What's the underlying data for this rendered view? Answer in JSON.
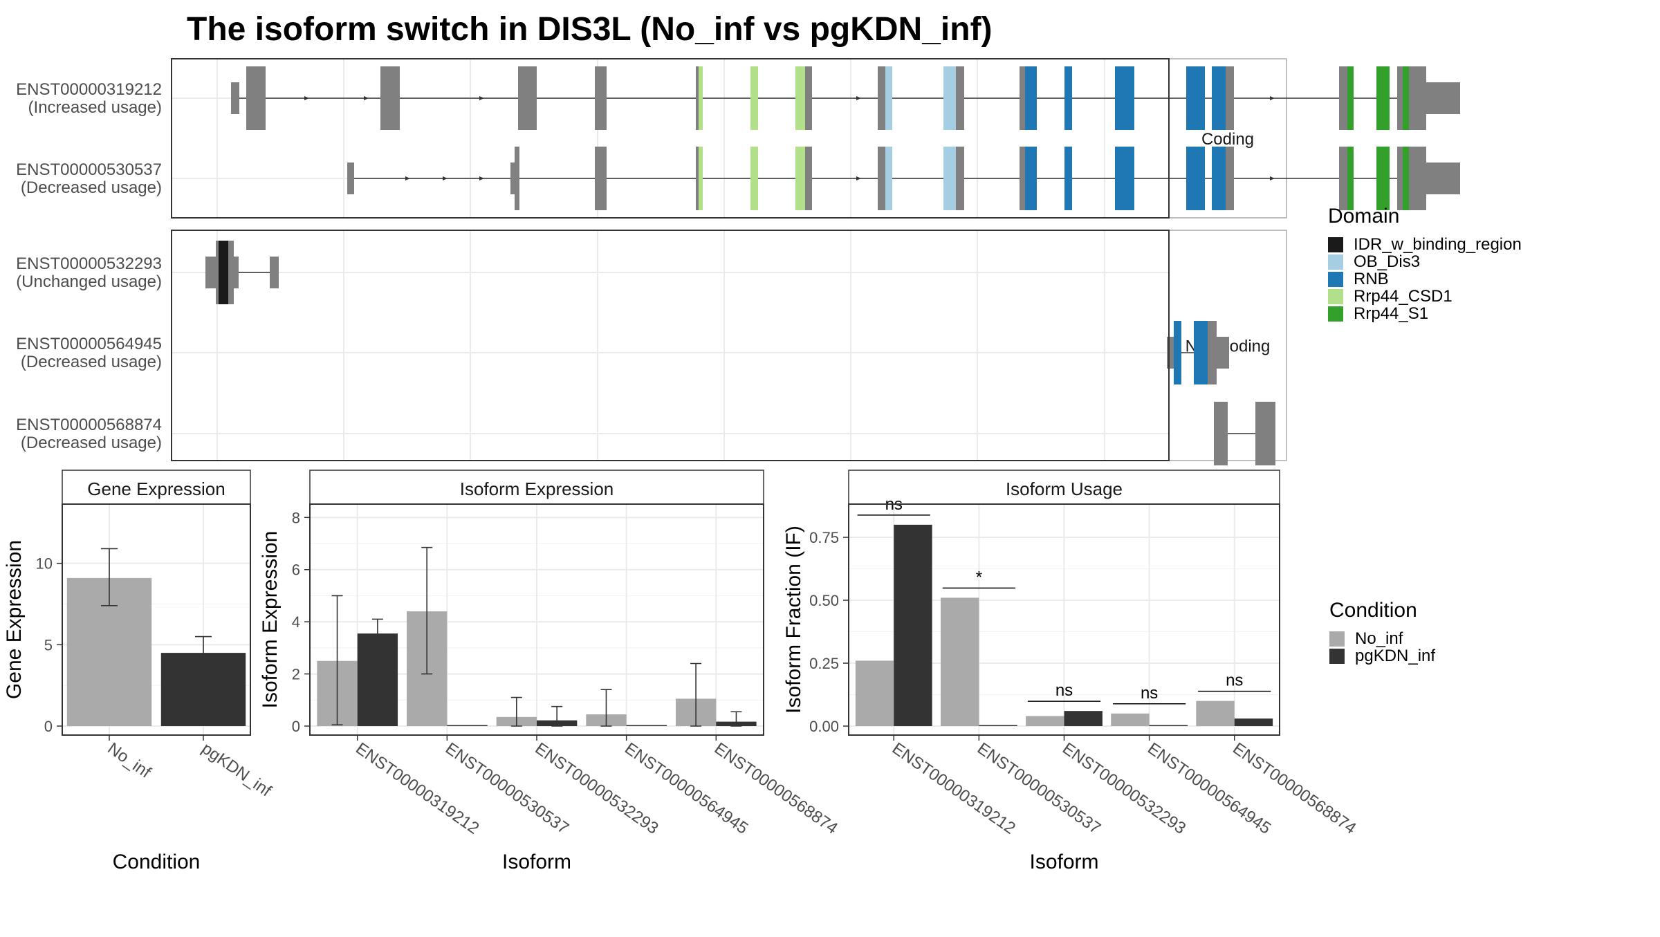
{
  "title": "The isoform switch in DIS3L (No_inf vs pgKDN_inf)",
  "structure": {
    "facets": [
      "Coding",
      "Non-coding"
    ],
    "isoforms": [
      {
        "id": "ENST00000319212",
        "usage": "(Increased usage)",
        "facet": "Coding",
        "exons": [
          [
            20,
            32,
            "utr"
          ],
          [
            42,
            70,
            "gray"
          ],
          [
            236,
            264,
            "gray"
          ],
          [
            435,
            462,
            "gray"
          ],
          [
            546,
            563,
            "gray"
          ],
          [
            692,
            696,
            "gray"
          ],
          [
            696,
            702,
            "Rrp44_CSD1"
          ],
          [
            771,
            782,
            "Rrp44_CSD1"
          ],
          [
            836,
            850,
            "Rrp44_CSD1"
          ],
          [
            850,
            860,
            "gray"
          ],
          [
            955,
            966,
            "gray"
          ],
          [
            966,
            976,
            "OB_Dis3"
          ],
          [
            1050,
            1068,
            "OB_Dis3"
          ],
          [
            1068,
            1080,
            "gray"
          ],
          [
            1160,
            1168,
            "gray"
          ],
          [
            1168,
            1185,
            "RNB"
          ],
          [
            1225,
            1236,
            "RNB"
          ],
          [
            1298,
            1326,
            "RNB"
          ],
          [
            1401,
            1428,
            "RNB"
          ],
          [
            1438,
            1458,
            "RNB"
          ],
          [
            1458,
            1470,
            "gray"
          ],
          [
            1622,
            1634,
            "gray"
          ],
          [
            1634,
            1643,
            "Rrp44_S1"
          ],
          [
            1676,
            1695,
            "Rrp44_S1"
          ],
          [
            1706,
            1714,
            "gray"
          ],
          [
            1714,
            1723,
            "Rrp44_S1"
          ],
          [
            1723,
            1728,
            "gray"
          ],
          [
            1728,
            1748,
            "gray"
          ],
          [
            1748,
            1797,
            "utr"
          ]
        ],
        "arrows": [
          130,
          216,
          383,
          928,
          1526
        ]
      },
      {
        "id": "ENST00000530537",
        "usage": "(Decreased usage)",
        "facet": "Coding",
        "exons": [
          [
            188,
            198,
            "utr"
          ],
          [
            424,
            430,
            "utr"
          ],
          [
            430,
            437,
            "gray"
          ],
          [
            546,
            563,
            "gray"
          ],
          [
            692,
            696,
            "gray"
          ],
          [
            696,
            702,
            "Rrp44_CSD1"
          ],
          [
            771,
            782,
            "Rrp44_CSD1"
          ],
          [
            836,
            850,
            "Rrp44_CSD1"
          ],
          [
            850,
            860,
            "gray"
          ],
          [
            955,
            966,
            "gray"
          ],
          [
            966,
            976,
            "OB_Dis3"
          ],
          [
            1050,
            1068,
            "OB_Dis3"
          ],
          [
            1068,
            1080,
            "gray"
          ],
          [
            1160,
            1168,
            "gray"
          ],
          [
            1168,
            1185,
            "RNB"
          ],
          [
            1225,
            1236,
            "RNB"
          ],
          [
            1298,
            1326,
            "RNB"
          ],
          [
            1401,
            1428,
            "RNB"
          ],
          [
            1438,
            1458,
            "RNB"
          ],
          [
            1458,
            1470,
            "gray"
          ],
          [
            1622,
            1634,
            "gray"
          ],
          [
            1634,
            1643,
            "Rrp44_S1"
          ],
          [
            1676,
            1695,
            "Rrp44_S1"
          ],
          [
            1706,
            1714,
            "gray"
          ],
          [
            1714,
            1723,
            "Rrp44_S1"
          ],
          [
            1723,
            1728,
            "gray"
          ],
          [
            1728,
            1748,
            "gray"
          ],
          [
            1748,
            1797,
            "utr"
          ]
        ],
        "arrows": [
          276,
          330,
          383,
          928,
          1526
        ]
      },
      {
        "id": "ENST00000532293",
        "usage": "(Unchanged usage)",
        "facet": "Non-coding",
        "exons": [
          [
            -17,
            -2,
            "utr"
          ],
          [
            -2,
            2,
            "gray"
          ],
          [
            2,
            16,
            "IDR_w_binding_region"
          ],
          [
            16,
            24,
            "gray"
          ],
          [
            24,
            31,
            "utr"
          ],
          [
            76,
            89,
            "utr"
          ]
        ],
        "arrows": []
      },
      {
        "id": "ENST00000564945",
        "usage": "(Decreased usage)",
        "facet": "Non-coding",
        "exons": [
          [
            1373,
            1383,
            "utr"
          ],
          [
            1383,
            1394,
            "RNB"
          ],
          [
            1412,
            1432,
            "RNB"
          ],
          [
            1432,
            1445,
            "gray"
          ],
          [
            1445,
            1463,
            "utr"
          ]
        ],
        "arrows": []
      },
      {
        "id": "ENST00000568874",
        "usage": "(Decreased usage)",
        "facet": "Non-coding",
        "exons": [
          [
            1441,
            1461,
            "gray"
          ],
          [
            1501,
            1530,
            "gray"
          ]
        ],
        "arrows": []
      }
    ]
  },
  "legends": {
    "domain": {
      "title": "Domain",
      "entries": [
        {
          "label": "IDR_w_binding_region",
          "color": "#1a1a1a"
        },
        {
          "label": "OB_Dis3",
          "color": "#a6cee3"
        },
        {
          "label": "RNB",
          "color": "#1f78b4"
        },
        {
          "label": "Rrp44_CSD1",
          "color": "#b2df8a"
        },
        {
          "label": "Rrp44_S1",
          "color": "#33a02c"
        }
      ]
    },
    "condition": {
      "title": "Condition",
      "entries": [
        {
          "label": "No_inf",
          "color": "#aaaaaa"
        },
        {
          "label": "pgKDN_inf",
          "color": "#333333"
        }
      ]
    }
  },
  "chart_data": [
    {
      "type": "bar",
      "title": "Gene Expression",
      "xlabel": "Condition",
      "ylabel": "Gene Expression",
      "ylim": [
        0,
        13.3
      ],
      "yticks": [
        0,
        5,
        10
      ],
      "categories": [
        "No_inf",
        "pgKDN_inf"
      ],
      "values": [
        9.1,
        4.5
      ],
      "error_low": [
        7.4,
        3.5
      ],
      "error_high": [
        10.9,
        5.5
      ]
    },
    {
      "type": "bar",
      "title": "Isoform Expression",
      "xlabel": "Isoform",
      "ylabel": "Isoform Expression",
      "ylim": [
        0,
        8.3
      ],
      "yticks": [
        0,
        2,
        4,
        6,
        8
      ],
      "categories": [
        "ENST00000319212",
        "ENST00000530537",
        "ENST00000532293",
        "ENST00000564945",
        "ENST00000568874"
      ],
      "series": [
        {
          "name": "No_inf",
          "values": [
            2.5,
            4.4,
            0.35,
            0.45,
            1.05
          ],
          "error_low": [
            0.05,
            2.0,
            0.0,
            0.0,
            0.0
          ],
          "error_high": [
            5.0,
            6.85,
            1.1,
            1.4,
            2.4
          ]
        },
        {
          "name": "pgKDN_inf",
          "values": [
            3.55,
            0.0,
            0.22,
            0.0,
            0.17
          ],
          "error_low": [
            3.0,
            null,
            0.0,
            null,
            0.0
          ],
          "error_high": [
            4.1,
            null,
            0.75,
            null,
            0.55
          ]
        }
      ]
    },
    {
      "type": "bar",
      "title": "Isoform Usage",
      "xlabel": "Isoform",
      "ylabel": "Isoform Fraction (IF)",
      "ylim": [
        0,
        0.86
      ],
      "yticks": [
        0.0,
        0.25,
        0.5,
        0.75
      ],
      "ytick_labels": [
        "0.00",
        "0.25",
        "0.50",
        "0.75"
      ],
      "categories": [
        "ENST00000319212",
        "ENST00000530537",
        "ENST00000532293",
        "ENST00000564945",
        "ENST00000568874"
      ],
      "series": [
        {
          "name": "No_inf",
          "values": [
            0.26,
            0.51,
            0.04,
            0.05,
            0.1
          ]
        },
        {
          "name": "pgKDN_inf",
          "values": [
            0.8,
            0.0,
            0.06,
            0.0,
            0.03
          ]
        }
      ],
      "significance": [
        "ns",
        "*",
        "ns",
        "ns",
        "ns"
      ]
    }
  ]
}
